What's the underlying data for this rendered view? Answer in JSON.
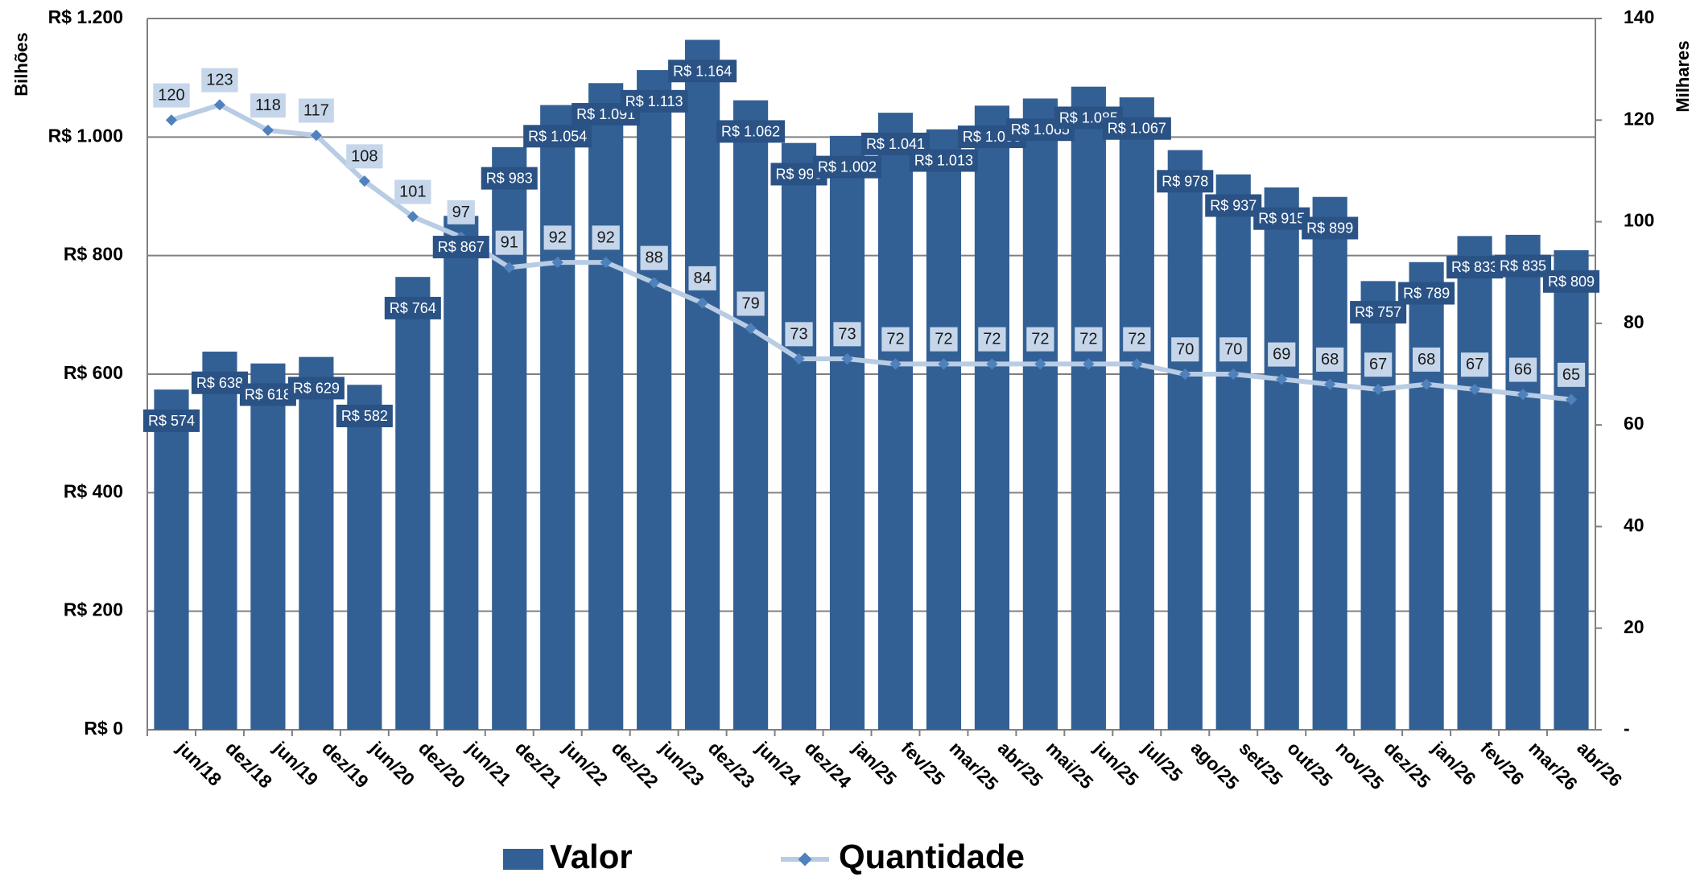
{
  "chart_data": {
    "type": "bar-line",
    "categories": [
      "jun/18",
      "dez/18",
      "jun/19",
      "dez/19",
      "jun/20",
      "dez/20",
      "jun/21",
      "dez/21",
      "jun/22",
      "dez/22",
      "jun/23",
      "dez/23",
      "jun/24",
      "dez/24",
      "jan/25",
      "fev/25",
      "mar/25",
      "abr/25",
      "mai/25",
      "jun/25",
      "jul/25",
      "ago/25",
      "set/25",
      "out/25",
      "nov/25",
      "dez/25",
      "jan/26",
      "fev/26",
      "mar/26",
      "abr/26"
    ],
    "y_label": "Bilhões",
    "y2_label": "Milhares",
    "ylim": [
      0,
      1200
    ],
    "yticks": [
      {
        "value": 0,
        "label": "R$ 0"
      },
      {
        "value": 200,
        "label": "R$ 200"
      },
      {
        "value": 400,
        "label": "R$ 400"
      },
      {
        "value": 600,
        "label": "R$ 600"
      },
      {
        "value": 800,
        "label": "R$ 800"
      },
      {
        "value": 1000,
        "label": "R$ 1.000"
      },
      {
        "value": 1200,
        "label": "R$ 1.200"
      }
    ],
    "y2lim": [
      0,
      140
    ],
    "y2ticks": [
      {
        "value": 0,
        "label": "-"
      },
      20,
      40,
      60,
      80,
      100,
      120,
      140
    ],
    "grid": true,
    "series": [
      {
        "name": "Valor",
        "type": "bar",
        "color": "#336094",
        "values": [
          574,
          638,
          618,
          629,
          582,
          764,
          867,
          983,
          1054,
          1091,
          1113,
          1164,
          1062,
          990,
          1002,
          1041,
          1013,
          1053,
          1065,
          1085,
          1067,
          978,
          937,
          915,
          899,
          757,
          789,
          833,
          835,
          809
        ],
        "value_labels": [
          "R$ 574",
          "R$ 638",
          "R$ 618",
          "R$ 629",
          "R$ 582",
          "R$ 764",
          "R$ 867",
          "R$ 983",
          "R$ 1.054",
          "R$ 1.091",
          "R$ 1.113",
          "R$ 1.164",
          "R$ 1.062",
          "R$ 990",
          "R$ 1.002",
          "R$ 1.041",
          "R$ 1.013",
          "R$ 1.053",
          "R$ 1.065",
          "R$ 1.085",
          "R$ 1.067",
          "R$ 978",
          "R$ 937",
          "R$ 915",
          "R$ 899",
          "R$ 757",
          "R$ 789",
          "R$ 833",
          "R$ 835",
          "R$ 809"
        ]
      },
      {
        "name": "Quantidade",
        "type": "line",
        "color": "#b8cce4",
        "axis": "y2",
        "values": [
          120,
          123,
          118,
          117,
          108,
          101,
          97,
          91,
          92,
          92,
          88,
          84,
          79,
          73,
          73,
          72,
          72,
          72,
          72,
          72,
          72,
          70,
          70,
          69,
          68,
          67,
          68,
          67,
          66,
          65
        ]
      }
    ]
  }
}
